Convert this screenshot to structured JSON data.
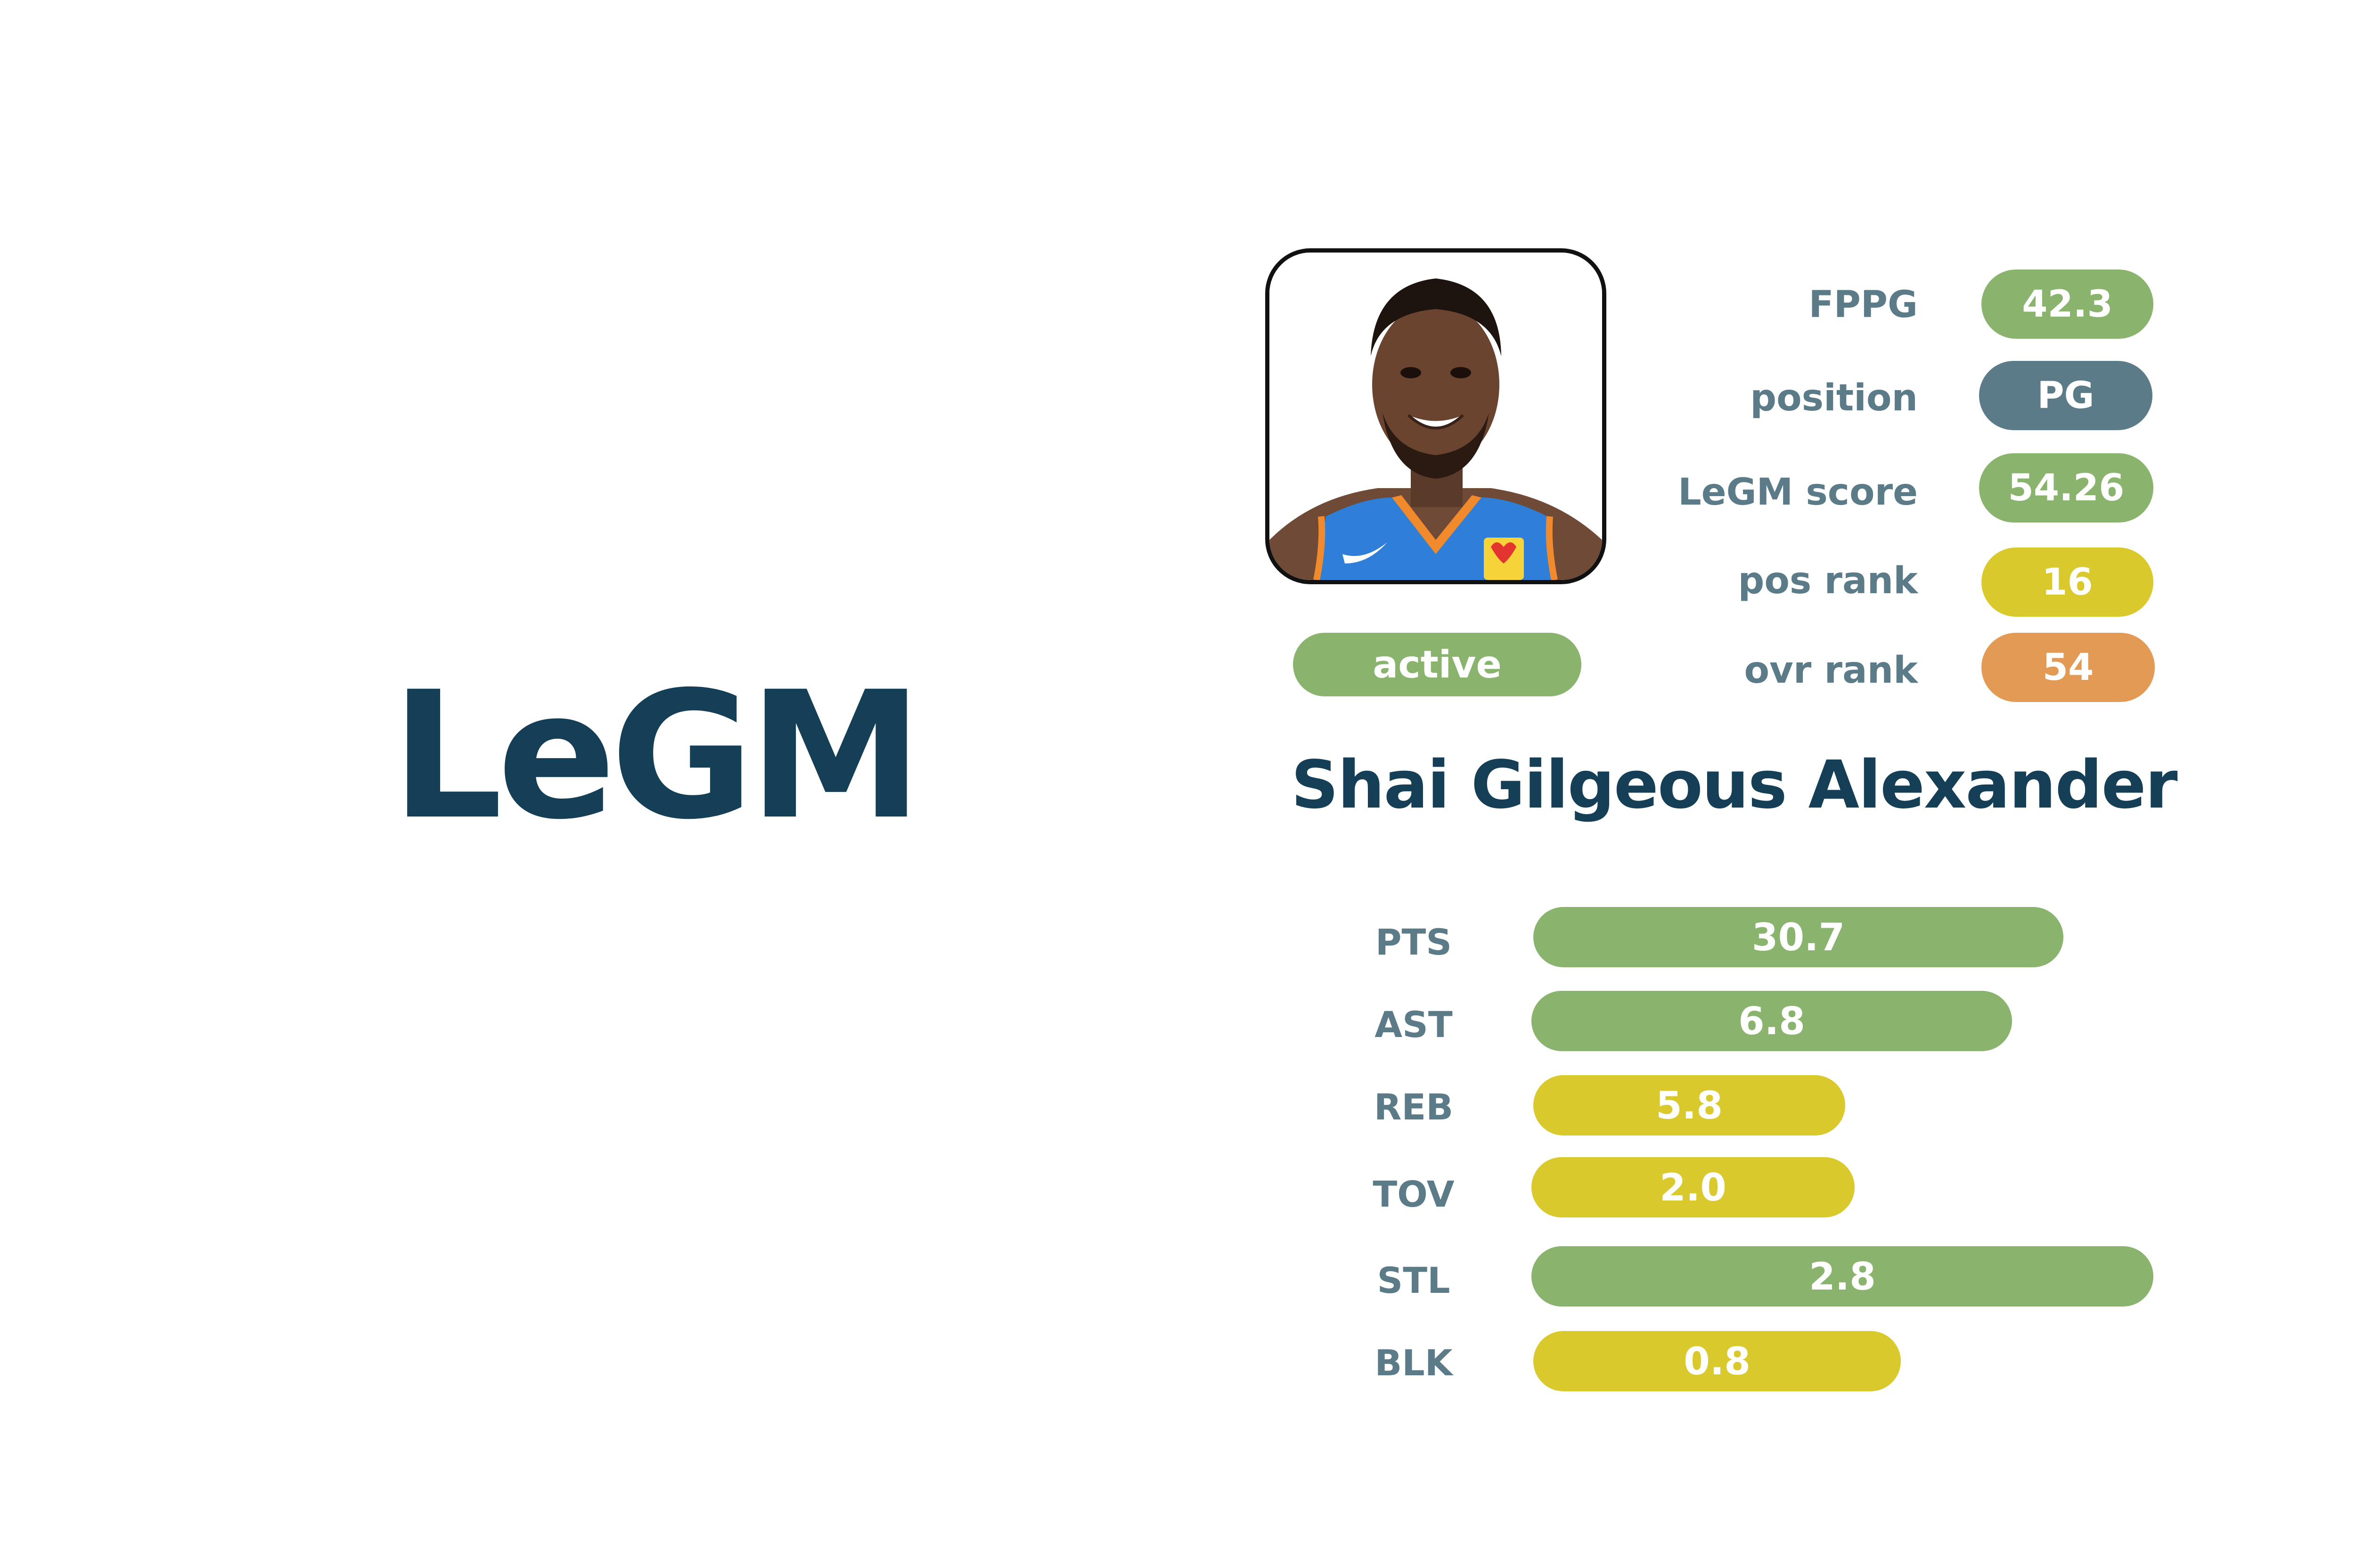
{
  "brand": {
    "logo_text": "LeGM"
  },
  "player": {
    "name": "Shai Gilgeous Alexander",
    "photo_icon": "player-headshot-icon",
    "status": "active",
    "status_color": "#8ab46e"
  },
  "summary": {
    "fppg": {
      "label": "FPPG",
      "value": "42.3",
      "color": "#8ab46e"
    },
    "position": {
      "label": "position",
      "value": "PG",
      "color": "#5c7b88"
    },
    "legm_score": {
      "label": "LeGM score",
      "value": "54.26",
      "color": "#8ab46e"
    },
    "pos_rank": {
      "label": "pos rank",
      "value": "16",
      "color": "#d9c92c"
    },
    "ovr_rank": {
      "label": "ovr rank",
      "value": "54",
      "color": "#e39a54"
    }
  },
  "stats": {
    "pts": {
      "label": "PTS",
      "value": "30.7",
      "color": "#8ab46e"
    },
    "ast": {
      "label": "AST",
      "value": "6.8",
      "color": "#8ab46e"
    },
    "reb": {
      "label": "REB",
      "value": "5.8",
      "color": "#d9c92c"
    },
    "tov": {
      "label": "TOV",
      "value": "2.0",
      "color": "#d9c92c"
    },
    "stl": {
      "label": "STL",
      "value": "2.8",
      "color": "#8ab46e"
    },
    "blk": {
      "label": "BLK",
      "value": "0.8",
      "color": "#d9c92c"
    }
  }
}
